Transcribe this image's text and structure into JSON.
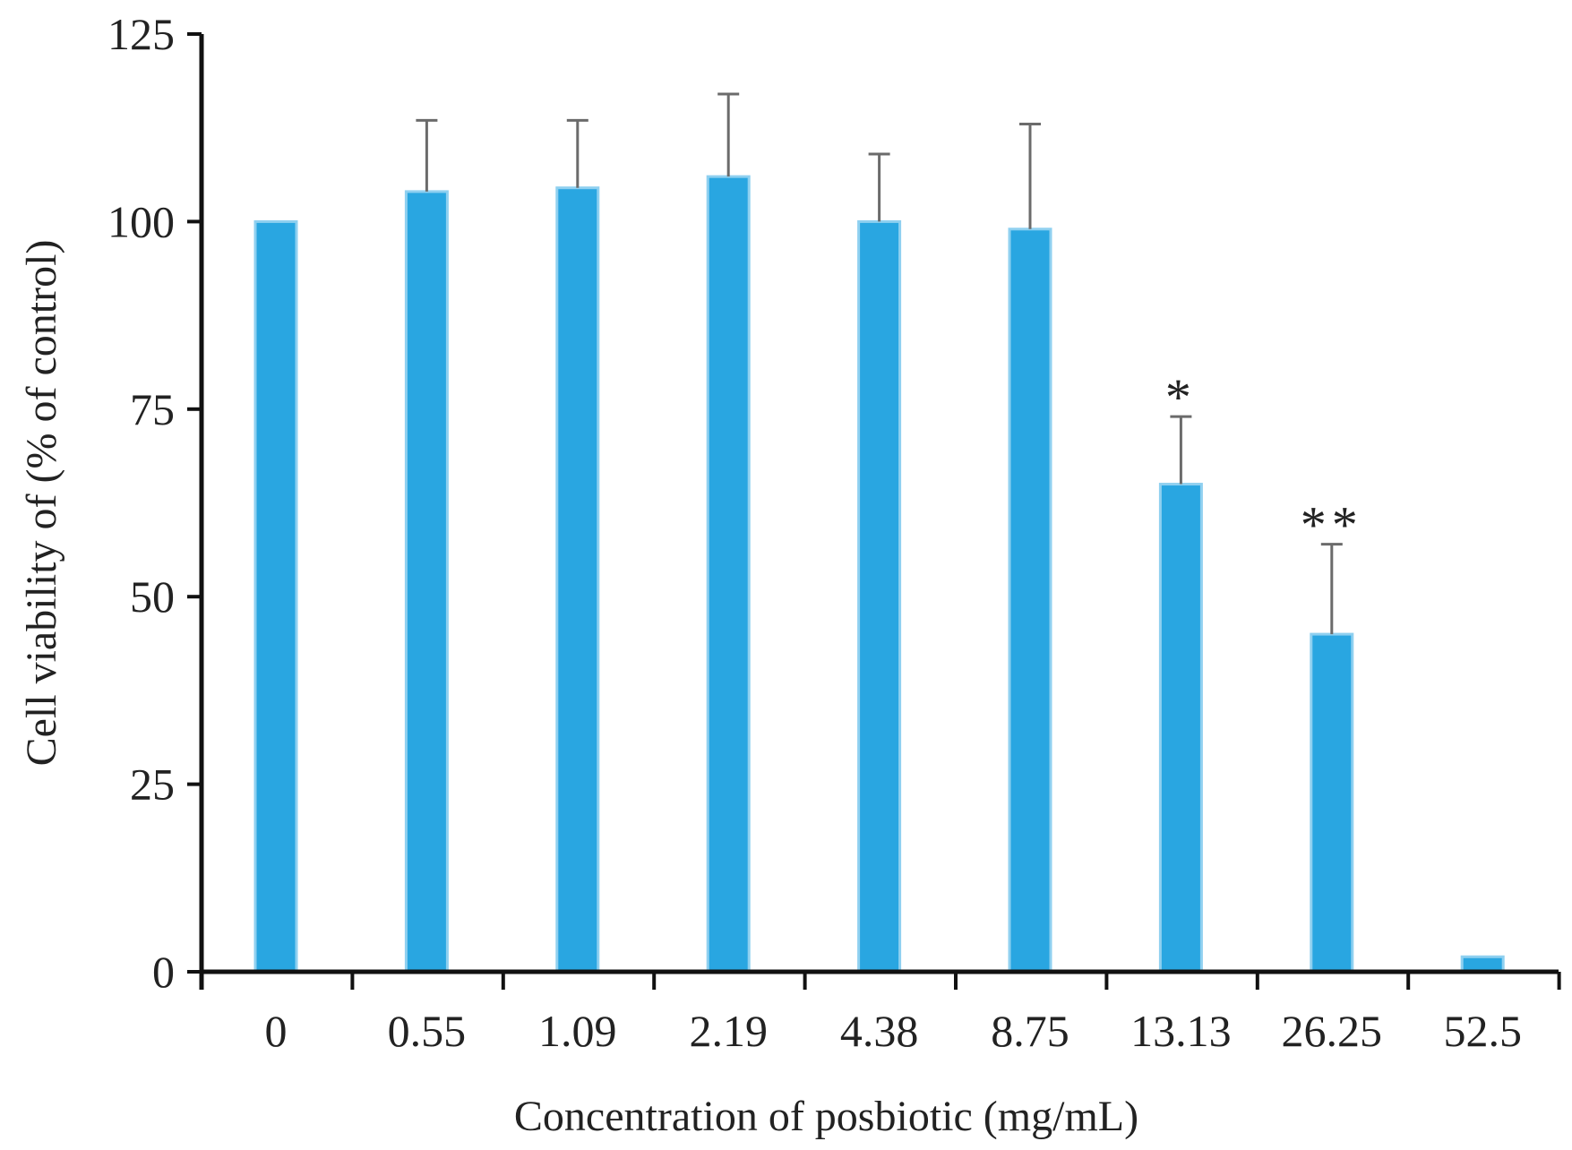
{
  "chart_data": {
    "type": "bar",
    "title": "",
    "xlabel": "Concentration of posbiotic (mg/mL)",
    "ylabel": "Cell viability of  (% of control)",
    "categories": [
      "0",
      "0.55",
      "1.09",
      "2.19",
      "4.38",
      "8.75",
      "13.13",
      "26.25",
      "52.5"
    ],
    "values": [
      100,
      104,
      104.5,
      106,
      100,
      99,
      65,
      45,
      2
    ],
    "error_upper": [
      100,
      113.5,
      113.5,
      117,
      109,
      113,
      74,
      57,
      2
    ],
    "significance": [
      "",
      "",
      "",
      "",
      "",
      "",
      "*",
      "**",
      ""
    ],
    "ylim": [
      0,
      125
    ],
    "yticks": [
      "0",
      "25",
      "50",
      "75",
      "100",
      "125"
    ],
    "grid": false,
    "legend": "none",
    "colors": {
      "bar": "#29a6e1",
      "bar_edge": "#8fd0f0",
      "error_bar": "#6b6b6b",
      "axis": "#111111"
    }
  }
}
